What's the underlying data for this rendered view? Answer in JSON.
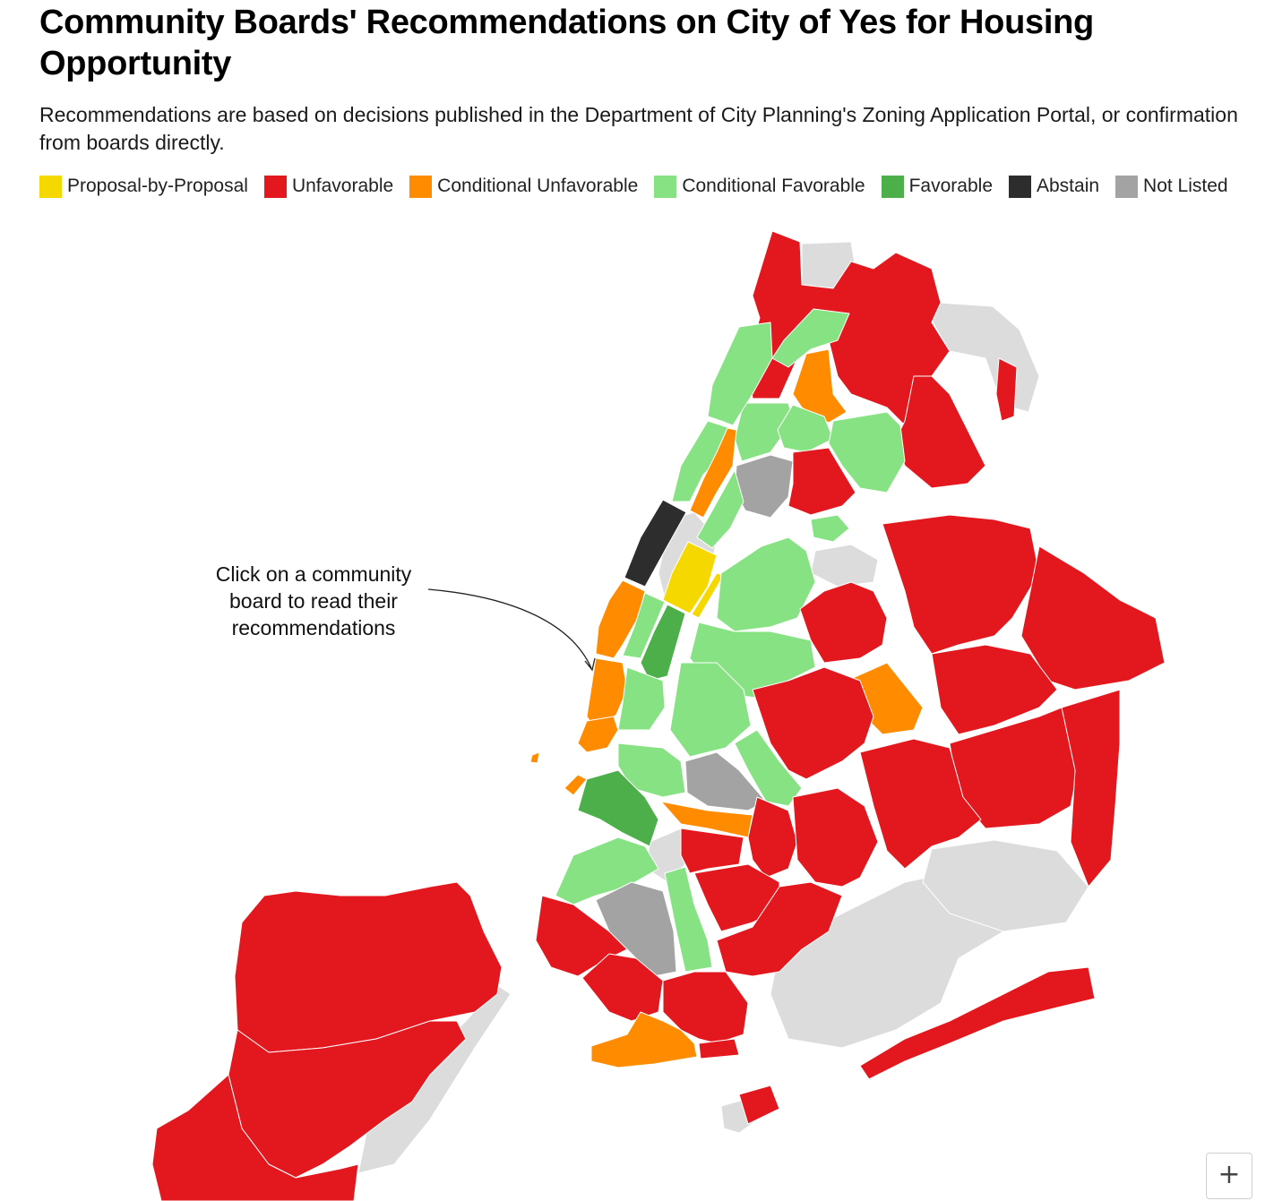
{
  "header": {
    "title": "Community Boards' Recommendations on City of Yes for Housing Opportunity",
    "subtitle": "Recommendations are based on decisions published in the Department of City Planning's Zoning Application Portal, or confirmation from boards directly."
  },
  "legend": [
    {
      "label": "Proposal-by-Proposal",
      "color": "#f5d800"
    },
    {
      "label": "Unfavorable",
      "color": "#e3181e"
    },
    {
      "label": "Conditional Unfavorable",
      "color": "#ff8c00"
    },
    {
      "label": "Conditional Favorable",
      "color": "#86e283"
    },
    {
      "label": "Favorable",
      "color": "#4caf4a"
    },
    {
      "label": "Abstain",
      "color": "#2d2d2d"
    },
    {
      "label": "Not Listed",
      "color": "#a3a3a3"
    }
  ],
  "colors": {
    "water_land": "#dcdcdc",
    "border": "#ffffff"
  },
  "map": {
    "annotation": "Click on a community board to read their recommendations",
    "zoom_in_label": "+"
  }
}
